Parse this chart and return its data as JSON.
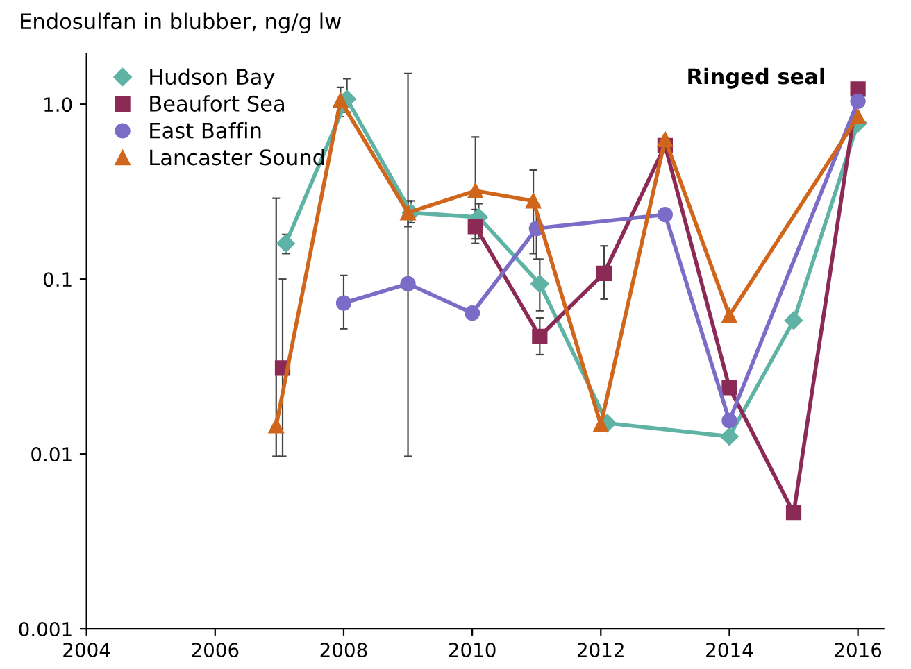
{
  "chart_data": {
    "type": "line",
    "ylabel": "Endosulfan in blubber, ng/g lw",
    "annotations": [
      "Ringed seal"
    ],
    "log": "y",
    "xlim": [
      2004,
      2016.4
    ],
    "xticks": [
      2004,
      2006,
      2008,
      2010,
      2012,
      2014,
      2016
    ],
    "ylim": [
      0.001,
      1.95
    ],
    "yticks": [
      {
        "value": 0.001,
        "label": "0.001"
      },
      {
        "value": 0.01,
        "label": "0.01"
      },
      {
        "value": 0.1,
        "label": "0.1"
      },
      {
        "value": 1,
        "label": "1.0"
      }
    ],
    "grid": false,
    "legend": "top left",
    "line_style": "solid",
    "series": [
      {
        "name": "Hudson Bay",
        "color": "#5fb3a5",
        "marker": "diamond",
        "x": [
          2007.1,
          2008.05,
          2009.05,
          2010.1,
          2011.05,
          2012.1,
          2014,
          2015,
          2016
        ],
        "values": [
          0.16,
          1.07,
          0.24,
          0.226,
          0.094,
          0.015,
          0.0126,
          0.058,
          0.78
        ],
        "errors": [
          [
            0.14,
            0.18
          ],
          [
            0.9,
            1.4
          ],
          [
            0.21,
            0.28
          ],
          [
            0.17,
            0.27
          ],
          [
            0.066,
            0.13
          ],
          null,
          null,
          null,
          null
        ]
      },
      {
        "name": "Beaufort Sea",
        "color": "#8b2a55",
        "marker": "square",
        "x": [
          2007.05,
          2008,
          2010.05,
          2011.05,
          2012.05,
          2013,
          2014,
          2015,
          2016
        ],
        "values": [
          0.031,
          null,
          0.2,
          0.047,
          0.108,
          0.58,
          0.024,
          0.0046,
          1.22
        ],
        "errors": [
          [
            0.0097,
            0.1
          ],
          null,
          [
            0.16,
            0.25
          ],
          [
            0.037,
            0.06
          ],
          [
            0.077,
            0.155
          ],
          null,
          null,
          null,
          null
        ]
      },
      {
        "name": "East Baffin",
        "color": "#7b6cc8",
        "marker": "circle",
        "x": [
          2008,
          2009,
          2010,
          2011,
          2013,
          2014,
          2016
        ],
        "values": [
          0.073,
          0.094,
          0.064,
          0.195,
          0.234,
          0.0155,
          1.04
        ],
        "errors": [
          [
            0.052,
            0.105
          ],
          [
            0.0097,
            1.5
          ],
          null,
          [
            0.13,
            0.26
          ],
          null,
          null,
          null
        ]
      },
      {
        "name": "Lancaster Sound",
        "color": "#d0661c",
        "marker": "triangle",
        "x": [
          2006.95,
          2007.95,
          2009,
          2010.05,
          2010.95,
          2012,
          2013,
          2014,
          2016
        ],
        "values": [
          0.0145,
          1.05,
          0.24,
          0.32,
          0.28,
          0.0147,
          0.63,
          0.062,
          0.85
        ],
        "errors": [
          [
            0.0097,
            0.29
          ],
          [
            0.85,
            1.25
          ],
          [
            0.2,
            0.28
          ],
          [
            0.17,
            0.65
          ],
          [
            0.14,
            0.42
          ],
          null,
          null,
          null,
          null
        ]
      }
    ]
  }
}
